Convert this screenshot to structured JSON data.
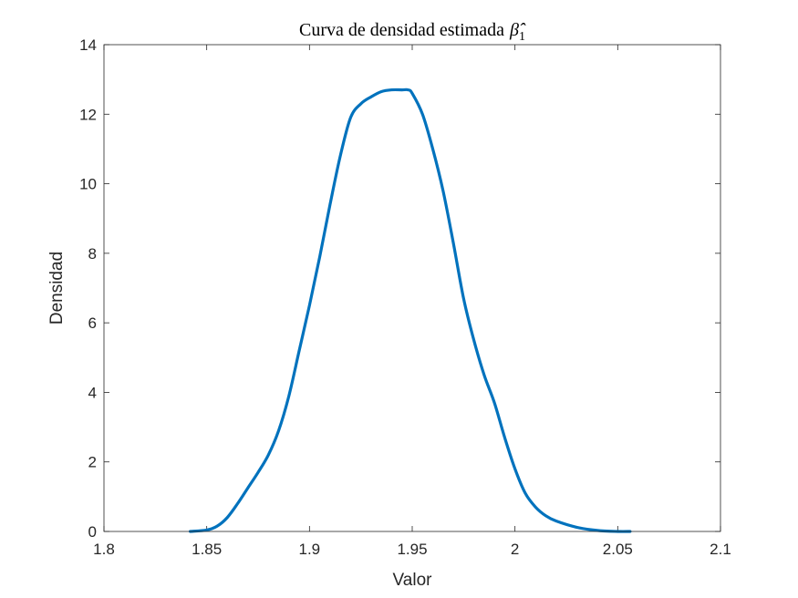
{
  "chart_data": {
    "type": "line",
    "title": "Curva de densidad estimada",
    "title_math": {
      "symbol": "β̂",
      "subscript": "1"
    },
    "xlabel": "Valor",
    "ylabel": "Densidad",
    "xlim": [
      1.8,
      2.1
    ],
    "ylim": [
      0,
      14
    ],
    "xticks": [
      1.8,
      1.85,
      1.9,
      1.95,
      2,
      2.05,
      2.1
    ],
    "xtick_labels": [
      "1.8",
      "1.85",
      "1.9",
      "1.95",
      "2",
      "2.05",
      "2.1"
    ],
    "yticks": [
      0,
      2,
      4,
      6,
      8,
      10,
      12,
      14
    ],
    "ytick_labels": [
      "0",
      "2",
      "4",
      "6",
      "8",
      "10",
      "12",
      "14"
    ],
    "grid": false,
    "box": true,
    "series": [
      {
        "color": "#0072BD",
        "x": [
          1.842,
          1.85,
          1.855,
          1.86,
          1.865,
          1.87,
          1.875,
          1.88,
          1.885,
          1.89,
          1.895,
          1.9,
          1.905,
          1.91,
          1.915,
          1.92,
          1.925,
          1.93,
          1.935,
          1.94,
          1.945,
          1.948,
          1.95,
          1.955,
          1.96,
          1.965,
          1.97,
          1.975,
          1.98,
          1.985,
          1.99,
          1.995,
          2.0,
          2.005,
          2.01,
          2.015,
          2.02,
          2.03,
          2.04,
          2.05,
          2.056
        ],
        "y": [
          0.0,
          0.04,
          0.15,
          0.4,
          0.8,
          1.25,
          1.7,
          2.2,
          2.9,
          3.9,
          5.2,
          6.5,
          7.9,
          9.4,
          10.8,
          11.9,
          12.3,
          12.5,
          12.65,
          12.7,
          12.7,
          12.7,
          12.6,
          12.0,
          11.0,
          9.8,
          8.3,
          6.7,
          5.5,
          4.5,
          3.7,
          2.7,
          1.8,
          1.1,
          0.7,
          0.45,
          0.3,
          0.12,
          0.03,
          0.0,
          0.0
        ]
      }
    ]
  }
}
